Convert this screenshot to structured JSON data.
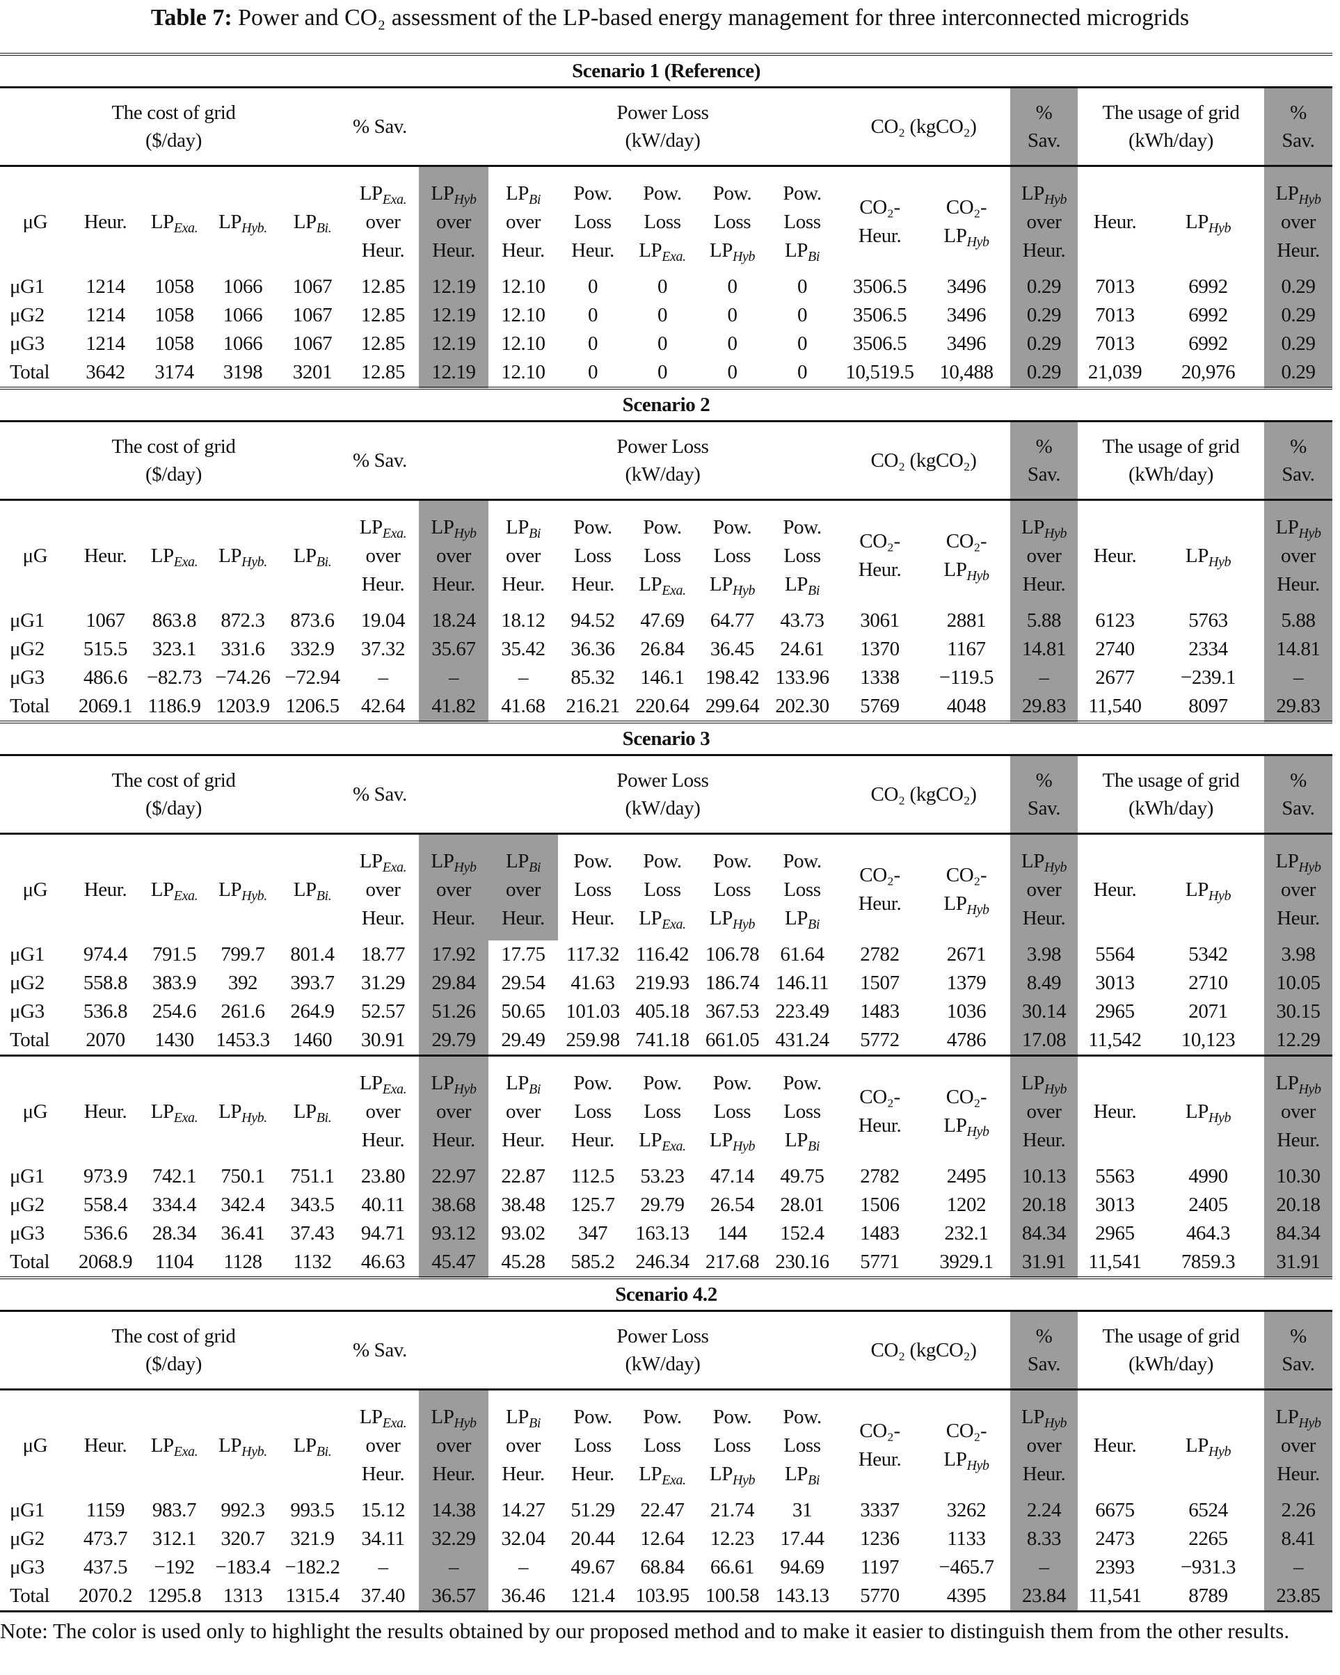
{
  "title": {
    "label": "Table 7:",
    "text": "Power and CO₂ assessment of the LP-based energy management for three interconnected microgrids"
  },
  "group_headers": {
    "cost": {
      "l1": "The cost of grid",
      "l2": "($/day)"
    },
    "sav": {
      "l1": "% Sav."
    },
    "loss": {
      "l1": "Power Loss",
      "l2": "(kW/day)"
    },
    "co2": {
      "l1": "CO₂ (kgCO₂)"
    },
    "co2sav": {
      "l1": "%",
      "l2": "Sav."
    },
    "usage": {
      "l1": "The usage of grid",
      "l2": "(kWh/day)"
    },
    "usagesav": {
      "l1": "%",
      "l2": "Sav."
    }
  },
  "sub_headers": [
    [
      [
        "μG"
      ]
    ],
    [
      [
        "Heur."
      ]
    ],
    [
      [
        "LP",
        "Exa."
      ]
    ],
    [
      [
        "LP",
        "Hyb."
      ]
    ],
    [
      [
        "LP",
        "Bi."
      ]
    ],
    [
      [
        "LP",
        "Exa."
      ],
      [
        "over"
      ],
      [
        "Heur."
      ]
    ],
    [
      [
        "LP",
        "Hyb"
      ],
      [
        "over"
      ],
      [
        "Heur."
      ]
    ],
    [
      [
        "LP",
        "Bi"
      ],
      [
        "over"
      ],
      [
        "Heur."
      ]
    ],
    [
      [
        "Pow."
      ],
      [
        "Loss"
      ],
      [
        "Heur."
      ]
    ],
    [
      [
        "Pow."
      ],
      [
        "Loss"
      ],
      [
        "LP",
        "Exa."
      ]
    ],
    [
      [
        "Pow."
      ],
      [
        "Loss"
      ],
      [
        "LP",
        "Hyb"
      ]
    ],
    [
      [
        "Pow."
      ],
      [
        "Loss"
      ],
      [
        "LP",
        "Bi"
      ]
    ],
    [
      [
        "CO₂-"
      ],
      [
        "Heur."
      ]
    ],
    [
      [
        "CO₂-"
      ],
      [
        "LP",
        "Hyb"
      ]
    ],
    [
      [
        "LP",
        "Hyb"
      ],
      [
        "over"
      ],
      [
        "Heur."
      ]
    ],
    [
      [
        "Heur."
      ]
    ],
    [
      [
        "LP",
        "Hyb"
      ]
    ],
    [
      [
        "LP",
        "Hyb"
      ],
      [
        "over"
      ],
      [
        "Heur."
      ]
    ]
  ],
  "scenarios": [
    {
      "title": "Scenario 1 (Reference)",
      "blocks": [
        {
          "group_header": true,
          "extra_shaded": [],
          "rows": [
            [
              "μG1",
              "1214",
              "1058",
              "1066",
              "1067",
              "12.85",
              "12.19",
              "12.10",
              "0",
              "0",
              "0",
              "0",
              "3506.5",
              "3496",
              "0.29",
              "7013",
              "6992",
              "0.29"
            ],
            [
              "μG2",
              "1214",
              "1058",
              "1066",
              "1067",
              "12.85",
              "12.19",
              "12.10",
              "0",
              "0",
              "0",
              "0",
              "3506.5",
              "3496",
              "0.29",
              "7013",
              "6992",
              "0.29"
            ],
            [
              "μG3",
              "1214",
              "1058",
              "1066",
              "1067",
              "12.85",
              "12.19",
              "12.10",
              "0",
              "0",
              "0",
              "0",
              "3506.5",
              "3496",
              "0.29",
              "7013",
              "6992",
              "0.29"
            ],
            [
              "Total",
              "3642",
              "3174",
              "3198",
              "3201",
              "12.85",
              "12.19",
              "12.10",
              "0",
              "0",
              "0",
              "0",
              "10,519.5",
              "10,488",
              "0.29",
              "21,039",
              "20,976",
              "0.29"
            ]
          ]
        }
      ]
    },
    {
      "title": "Scenario 2",
      "blocks": [
        {
          "group_header": true,
          "extra_shaded": [],
          "rows": [
            [
              "μG1",
              "1067",
              "863.8",
              "872.3",
              "873.6",
              "19.04",
              "18.24",
              "18.12",
              "94.52",
              "47.69",
              "64.77",
              "43.73",
              "3061",
              "2881",
              "5.88",
              "6123",
              "5763",
              "5.88"
            ],
            [
              "μG2",
              "515.5",
              "323.1",
              "331.6",
              "332.9",
              "37.32",
              "35.67",
              "35.42",
              "36.36",
              "26.84",
              "36.45",
              "24.61",
              "1370",
              "1167",
              "14.81",
              "2740",
              "2334",
              "14.81"
            ],
            [
              "μG3",
              "486.6",
              "−82.73",
              "−74.26",
              "−72.94",
              "–",
              "–",
              "–",
              "85.32",
              "146.1",
              "198.42",
              "133.96",
              "1338",
              "−119.5",
              "–",
              "2677",
              "−239.1",
              "–"
            ],
            [
              "Total",
              "2069.1",
              "1186.9",
              "1203.9",
              "1206.5",
              "42.64",
              "41.82",
              "41.68",
              "216.21",
              "220.64",
              "299.64",
              "202.30",
              "5769",
              "4048",
              "29.83",
              "11,540",
              "8097",
              "29.83"
            ]
          ]
        }
      ]
    },
    {
      "title": "Scenario 3",
      "blocks": [
        {
          "group_header": true,
          "extra_shaded": [
            7
          ],
          "rows": [
            [
              "μG1",
              "974.4",
              "791.5",
              "799.7",
              "801.4",
              "18.77",
              "17.92",
              "17.75",
              "117.32",
              "116.42",
              "106.78",
              "61.64",
              "2782",
              "2671",
              "3.98",
              "5564",
              "5342",
              "3.98"
            ],
            [
              "μG2",
              "558.8",
              "383.9",
              "392",
              "393.7",
              "31.29",
              "29.84",
              "29.54",
              "41.63",
              "219.93",
              "186.74",
              "146.11",
              "1507",
              "1379",
              "8.49",
              "3013",
              "2710",
              "10.05"
            ],
            [
              "μG3",
              "536.8",
              "254.6",
              "261.6",
              "264.9",
              "52.57",
              "51.26",
              "50.65",
              "101.03",
              "405.18",
              "367.53",
              "223.49",
              "1483",
              "1036",
              "30.14",
              "2965",
              "2071",
              "30.15"
            ],
            [
              "Total",
              "2070",
              "1430",
              "1453.3",
              "1460",
              "30.91",
              "29.79",
              "29.49",
              "259.98",
              "741.18",
              "661.05",
              "431.24",
              "5772",
              "4786",
              "17.08",
              "11,542",
              "10,123",
              "12.29"
            ]
          ]
        },
        {
          "group_header": false,
          "extra_shaded": [],
          "rows": [
            [
              "μG1",
              "973.9",
              "742.1",
              "750.1",
              "751.1",
              "23.80",
              "22.97",
              "22.87",
              "112.5",
              "53.23",
              "47.14",
              "49.75",
              "2782",
              "2495",
              "10.13",
              "5563",
              "4990",
              "10.30"
            ],
            [
              "μG2",
              "558.4",
              "334.4",
              "342.4",
              "343.5",
              "40.11",
              "38.68",
              "38.48",
              "125.7",
              "29.79",
              "26.54",
              "28.01",
              "1506",
              "1202",
              "20.18",
              "3013",
              "2405",
              "20.18"
            ],
            [
              "μG3",
              "536.6",
              "28.34",
              "36.41",
              "37.43",
              "94.71",
              "93.12",
              "93.02",
              "347",
              "163.13",
              "144",
              "152.4",
              "1483",
              "232.1",
              "84.34",
              "2965",
              "464.3",
              "84.34"
            ],
            [
              "Total",
              "2068.9",
              "1104",
              "1128",
              "1132",
              "46.63",
              "45.47",
              "45.28",
              "585.2",
              "246.34",
              "217.68",
              "230.16",
              "5771",
              "3929.1",
              "31.91",
              "11,541",
              "7859.3",
              "31.91"
            ]
          ]
        }
      ]
    },
    {
      "title": "Scenario 4.2",
      "blocks": [
        {
          "group_header": true,
          "extra_shaded": [],
          "rows": [
            [
              "μG1",
              "1159",
              "983.7",
              "992.3",
              "993.5",
              "15.12",
              "14.38",
              "14.27",
              "51.29",
              "22.47",
              "21.74",
              "31",
              "3337",
              "3262",
              "2.24",
              "6675",
              "6524",
              "2.26"
            ],
            [
              "μG2",
              "473.7",
              "312.1",
              "320.7",
              "321.9",
              "34.11",
              "32.29",
              "32.04",
              "20.44",
              "12.64",
              "12.23",
              "17.44",
              "1236",
              "1133",
              "8.33",
              "2473",
              "2265",
              "8.41"
            ],
            [
              "μG3",
              "437.5",
              "−192",
              "−183.4",
              "−182.2",
              "–",
              "–",
              "–",
              "49.67",
              "68.84",
              "66.61",
              "94.69",
              "1197",
              "−465.7",
              "–",
              "2393",
              "−931.3",
              "–"
            ],
            [
              "Total",
              "2070.2",
              "1295.8",
              "1313",
              "1315.4",
              "37.40",
              "36.57",
              "36.46",
              "121.4",
              "103.95",
              "100.58",
              "143.13",
              "5770",
              "4395",
              "23.84",
              "11,541",
              "8789",
              "23.85"
            ]
          ]
        }
      ]
    }
  ],
  "note": "Note: The color is used only to highlight the results obtained by our proposed method and to make it easier to distinguish them from the other results.",
  "colors": {
    "highlight": "#9c9c9c"
  }
}
